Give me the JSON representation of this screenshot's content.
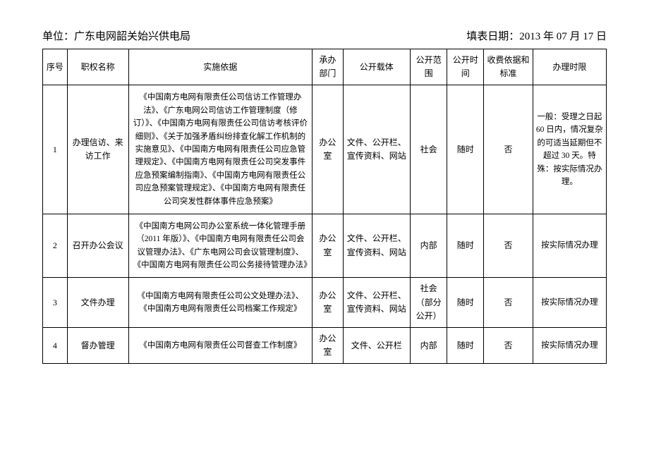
{
  "header": {
    "unit_label": "单位：",
    "unit_name": "广东电网韶关始兴供电局",
    "date_label": "填表日期：",
    "date_value": "2013 年 07 月 17 日"
  },
  "columns": {
    "seq": "序号",
    "name": "职权名称",
    "basis": "实施依据",
    "dept": "承办部门",
    "media": "公开载体",
    "scope": "公开范围",
    "time": "公开时间",
    "fee": "收费依据和标准",
    "limit": "办理时限"
  },
  "rows": [
    {
      "seq": "1",
      "name": "办理信访、来访工作",
      "basis": "《中国南方电网有限责任公司信访工作管理办法》、《广东电网公司信访工作管理制度（修订）》、《中国南方电网有限责任公司信访考核评价细则》、《关于加强矛盾纠纷排查化解工作机制的实施意见》、《中国南方电网有限责任公司应急管理规定》、《中国南方电网有限责任公司突发事件应急预案编制指南》、《中国南方电网有限责任公司应急预案管理规定》、《中国南方电网有限责任公司突发性群体事件应急预案》",
      "dept": "办公室",
      "media": "文件、公开栏、宣传资料、网站",
      "scope": "社会",
      "time": "随时",
      "fee": "否",
      "limit": "一般：受理之日起 60 日内，情况复杂的可适当延期但不超过 30 天。特殊：按实际情况办理。"
    },
    {
      "seq": "2",
      "name": "召开办公会议",
      "basis": "《中国南方电网公司办公室系统一体化管理手册（2011 年版）》、《中国南方电网有限责任公司会议管理办法》、《广东电网公司会议管理制度》、《中国南方电网有限责任公司公务接待管理办法》",
      "dept": "办公室",
      "media": "文件、公开栏、宣传资料、网站",
      "scope": "内部",
      "time": "随时",
      "fee": "否",
      "limit": "按实际情况办理"
    },
    {
      "seq": "3",
      "name": "文件办理",
      "basis": "《中国南方电网有限责任公司公文处理办法》、《中国南方电网有限责任公司档案工作规定》",
      "dept": "办公室",
      "media": "文件、公开栏、宣传资料、网站",
      "scope": "社会（部分公开）",
      "time": "随时",
      "fee": "否",
      "limit": "按实际情况办理"
    },
    {
      "seq": "4",
      "name": "督办管理",
      "basis": "《中国南方电网有限责任公司督查工作制度》",
      "dept": "办公室",
      "media": "文件、公开栏",
      "scope": "内部",
      "time": "随时",
      "fee": "否",
      "limit": "按实际情况办理"
    }
  ]
}
